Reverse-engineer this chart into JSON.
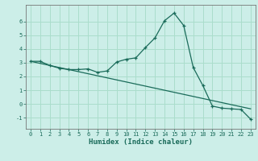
{
  "title": "",
  "xlabel": "Humidex (Indice chaleur)",
  "ylabel": "",
  "bg_color": "#cceee8",
  "grid_color": "#aaddcc",
  "line_color": "#1a6b5a",
  "xlim": [
    -0.5,
    23.5
  ],
  "ylim": [
    -1.8,
    7.2
  ],
  "yticks": [
    -1,
    0,
    1,
    2,
    3,
    4,
    5,
    6
  ],
  "xticks": [
    0,
    1,
    2,
    3,
    4,
    5,
    6,
    7,
    8,
    9,
    10,
    11,
    12,
    13,
    14,
    15,
    16,
    17,
    18,
    19,
    20,
    21,
    22,
    23
  ],
  "curve1_x": [
    0,
    1,
    2,
    3,
    4,
    5,
    6,
    7,
    8,
    9,
    10,
    11,
    12,
    13,
    14,
    15,
    16,
    17,
    18,
    19,
    20,
    21,
    22,
    23
  ],
  "curve1_y": [
    3.1,
    3.1,
    2.8,
    2.6,
    2.5,
    2.5,
    2.55,
    2.3,
    2.4,
    3.05,
    3.25,
    3.35,
    4.1,
    4.8,
    6.05,
    6.6,
    5.7,
    2.65,
    1.35,
    -0.15,
    -0.3,
    -0.35,
    -0.4,
    -1.1
  ],
  "curve2_x": [
    0,
    1,
    2,
    3,
    4,
    5,
    6,
    7,
    8,
    9,
    10,
    11,
    12,
    13,
    14,
    15,
    16,
    17,
    18,
    19,
    20,
    21,
    22,
    23
  ],
  "curve2_y": [
    3.1,
    2.95,
    2.8,
    2.65,
    2.5,
    2.35,
    2.2,
    2.05,
    1.9,
    1.75,
    1.6,
    1.45,
    1.3,
    1.15,
    1.0,
    0.85,
    0.7,
    0.55,
    0.4,
    0.25,
    0.1,
    -0.05,
    -0.2,
    -0.35
  ],
  "tick_fontsize": 5.0,
  "xlabel_fontsize": 6.5,
  "xlabel_fontweight": "bold"
}
